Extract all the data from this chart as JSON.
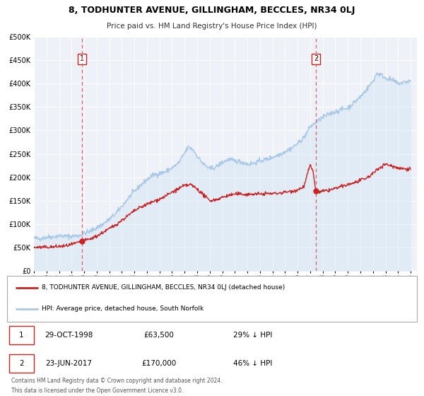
{
  "title": "8, TODHUNTER AVENUE, GILLINGHAM, BECCLES, NR34 0LJ",
  "subtitle": "Price paid vs. HM Land Registry's House Price Index (HPI)",
  "ylim": [
    0,
    500000
  ],
  "yticks": [
    0,
    50000,
    100000,
    150000,
    200000,
    250000,
    300000,
    350000,
    400000,
    450000,
    500000
  ],
  "xlim_start": 1995.0,
  "xlim_end": 2025.5,
  "xtick_years": [
    1995,
    1996,
    1997,
    1998,
    1999,
    2000,
    2001,
    2002,
    2003,
    2004,
    2005,
    2006,
    2007,
    2008,
    2009,
    2010,
    2011,
    2012,
    2013,
    2014,
    2015,
    2016,
    2017,
    2018,
    2019,
    2020,
    2021,
    2022,
    2023,
    2024,
    2025
  ],
  "hpi_color": "#a8c8e8",
  "hpi_fill_color": "#c8dff0",
  "price_color": "#cc2222",
  "marker_color": "#cc2222",
  "vline_color": "#e06060",
  "plot_bg_color": "#eef2f8",
  "grid_color": "#ffffff",
  "legend_label_red": "8, TODHUNTER AVENUE, GILLINGHAM, BECCLES, NR34 0LJ (detached house)",
  "legend_label_blue": "HPI: Average price, detached house, South Norfolk",
  "transaction1_date": "29-OCT-1998",
  "transaction1_price": "£63,500",
  "transaction1_hpi": "29% ↓ HPI",
  "transaction1_year": 1998.83,
  "transaction1_value": 63500,
  "transaction2_date": "23-JUN-2017",
  "transaction2_price": "£170,000",
  "transaction2_hpi": "46% ↓ HPI",
  "transaction2_year": 2017.47,
  "transaction2_value": 170000,
  "footnote1": "Contains HM Land Registry data © Crown copyright and database right 2024.",
  "footnote2": "This data is licensed under the Open Government Licence v3.0."
}
